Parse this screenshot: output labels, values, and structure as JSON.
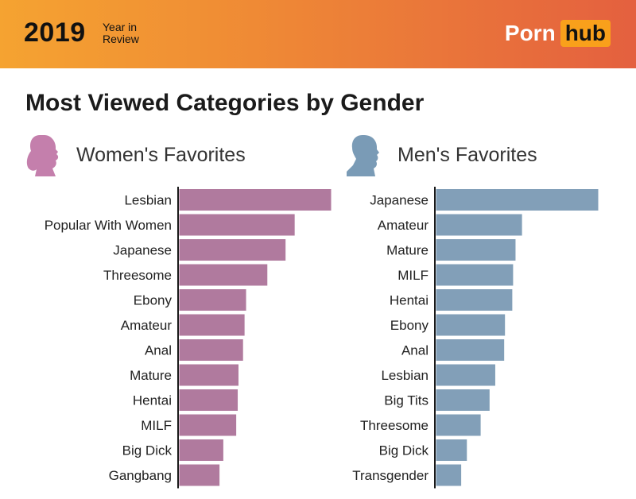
{
  "header": {
    "year": "2019",
    "subtitle": "Year in Review",
    "logo_part1": "Porn",
    "logo_part2": "hub"
  },
  "title": "Most Viewed Categories by Gender",
  "colors": {
    "women": "#b07a9e",
    "men": "#829fb8",
    "banner_start": "#f5a331",
    "banner_end": "#e4603f"
  },
  "chart_data": [
    {
      "type": "bar",
      "orientation": "horizontal",
      "title": "Women's Favorites",
      "icon": "woman-silhouette-icon",
      "categories": [
        "Lesbian",
        "Popular With Women",
        "Japanese",
        "Threesome",
        "Ebony",
        "Amateur",
        "Anal",
        "Mature",
        "Hentai",
        "MILF",
        "Big Dick",
        "Gangbang"
      ],
      "values": [
        100,
        76,
        70,
        58,
        44,
        43,
        42,
        39,
        38.5,
        37.5,
        29,
        26.5
      ],
      "xlim": [
        0,
        100
      ],
      "grid": false
    },
    {
      "type": "bar",
      "orientation": "horizontal",
      "title": "Men's Favorites",
      "icon": "man-silhouette-icon",
      "categories": [
        "Japanese",
        "Amateur",
        "Mature",
        "MILF",
        "Hentai",
        "Ebony",
        "Anal",
        "Lesbian",
        "Big Tits",
        "Threesome",
        "Big Dick",
        "Transgender"
      ],
      "values": [
        100,
        53,
        49,
        47.5,
        47,
        42.5,
        42,
        36.5,
        33,
        27.5,
        19,
        15.5
      ],
      "xlim": [
        0,
        100
      ],
      "grid": false
    }
  ]
}
